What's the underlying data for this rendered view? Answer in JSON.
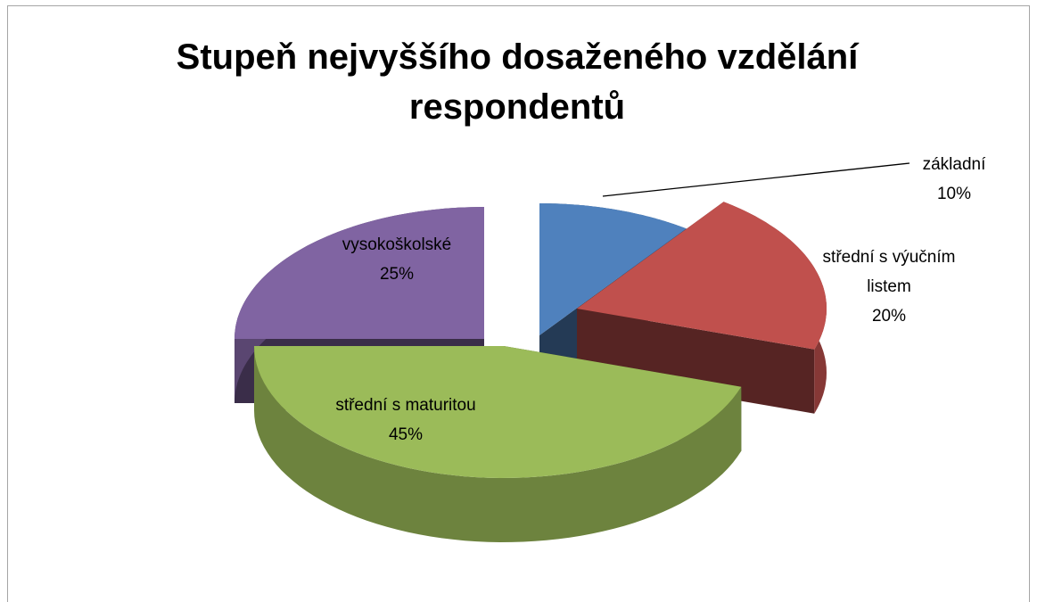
{
  "chart_data": {
    "type": "pie",
    "title": "Stupeň nejvyššího dosaženého vzdělání respondentů",
    "categories": [
      "základní",
      "střední s výučním listem",
      "střední s maturitou",
      "vysokoškolské"
    ],
    "values": [
      10,
      20,
      45,
      25
    ],
    "value_labels": [
      "10%",
      "20%",
      "45%",
      "25%"
    ],
    "colors": [
      "#4f81bd",
      "#c0504d",
      "#9bbb59",
      "#8064a2"
    ]
  }
}
